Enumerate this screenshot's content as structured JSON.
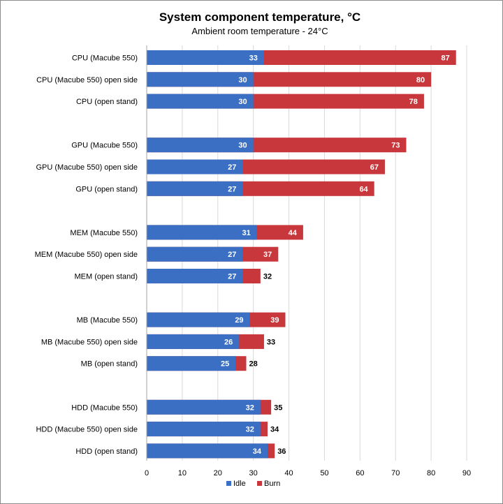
{
  "chart_data": {
    "type": "bar",
    "orientation": "horizontal",
    "stacking": "overlay",
    "title": "System component temperature, °C",
    "subtitle": "Ambient room temperature - 24°C",
    "categories": [
      "CPU (Macube 550)",
      "CPU (Macube 550) open side",
      "CPU (open stand)",
      "GPU (Macube 550)",
      "GPU (Macube 550) open side",
      "GPU (open stand)",
      "MEM (Macube 550)",
      "MEM (Macube 550) open side",
      "MEM (open stand)",
      "MB (Macube 550)",
      "MB (Macube 550) open side",
      "MB (open stand)",
      "HDD (Macube 550)",
      "HDD (Macube 550) open side",
      "HDD (open stand)"
    ],
    "groups": [
      3,
      3,
      3,
      3,
      3
    ],
    "series": [
      {
        "name": "Idle",
        "color": "#3a6fc4",
        "values": [
          33,
          30,
          30,
          30,
          27,
          27,
          31,
          27,
          27,
          29,
          26,
          25,
          32,
          32,
          34
        ]
      },
      {
        "name": "Burn",
        "color": "#c7373b",
        "values": [
          87,
          80,
          78,
          73,
          67,
          64,
          44,
          37,
          32,
          39,
          33,
          28,
          35,
          34,
          36
        ]
      }
    ],
    "xlim": [
      0,
      90
    ],
    "xticks": [
      "0",
      "10",
      "20",
      "30",
      "40",
      "50",
      "60",
      "70",
      "80",
      "90"
    ],
    "grid": true,
    "legend_position": "bottom"
  }
}
